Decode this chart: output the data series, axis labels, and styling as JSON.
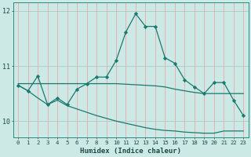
{
  "xlabel": "Humidex (Indice chaleur)",
  "x": [
    0,
    1,
    2,
    3,
    4,
    5,
    6,
    7,
    8,
    9,
    10,
    11,
    12,
    13,
    14,
    15,
    16,
    17,
    18,
    19,
    20,
    21,
    22,
    23
  ],
  "line1": [
    10.65,
    10.55,
    10.82,
    10.3,
    10.42,
    10.3,
    10.58,
    10.68,
    10.8,
    10.8,
    11.1,
    11.62,
    11.95,
    11.72,
    11.72,
    11.15,
    11.05,
    10.75,
    10.62,
    10.5,
    10.7,
    10.7,
    10.38,
    10.1
  ],
  "line2": [
    10.68,
    10.68,
    10.68,
    10.68,
    10.68,
    10.68,
    10.68,
    10.68,
    10.68,
    10.68,
    10.68,
    10.67,
    10.66,
    10.65,
    10.64,
    10.62,
    10.58,
    10.55,
    10.52,
    10.5,
    10.5,
    10.5,
    10.5,
    10.5
  ],
  "line3": [
    10.65,
    10.55,
    10.42,
    10.3,
    10.38,
    10.28,
    10.22,
    10.16,
    10.1,
    10.05,
    10.0,
    9.96,
    9.92,
    9.88,
    9.85,
    9.83,
    9.82,
    9.8,
    9.79,
    9.78,
    9.78,
    9.82,
    9.82,
    9.82
  ],
  "line_color": "#1a7a6e",
  "bg_color": "#cce9e6",
  "vgrid_color": "#e8a8a8",
  "hgrid_color": "#b0c8c5",
  "ylim": [
    9.7,
    12.15
  ],
  "yticks": [
    10,
    11,
    12
  ],
  "xticks": [
    0,
    1,
    2,
    3,
    4,
    5,
    6,
    7,
    8,
    9,
    10,
    11,
    12,
    13,
    14,
    15,
    16,
    17,
    18,
    19,
    20,
    21,
    22,
    23
  ]
}
